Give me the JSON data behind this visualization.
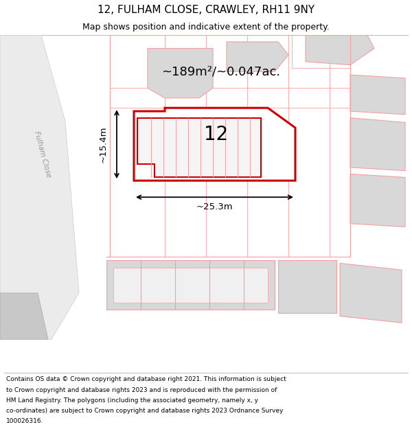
{
  "title": "12, FULHAM CLOSE, CRAWLEY, RH11 9NY",
  "subtitle": "Map shows position and indicative extent of the property.",
  "footer": "Contains OS data © Crown copyright and database right 2021. This information is subject to Crown copyright and database rights 2023 and is reproduced with the permission of HM Land Registry. The polygons (including the associated geometry, namely x, y co-ordinates) are subject to Crown copyright and database rights 2023 Ordnance Survey 100026316.",
  "background_color": "#ffffff",
  "map_bg_color": "#ffffff",
  "light_red": "#f4a0a0",
  "highlight_red": "#cc0000",
  "gray_fill": "#d8d8d8",
  "area_text": "~189m²/~0.047ac.",
  "dim_width": "~25.3m",
  "dim_height": "~15.4m",
  "number_label": "12",
  "road_label": "Fulham Close",
  "title_fontsize": 11,
  "subtitle_fontsize": 9,
  "footer_fontsize": 6.5
}
